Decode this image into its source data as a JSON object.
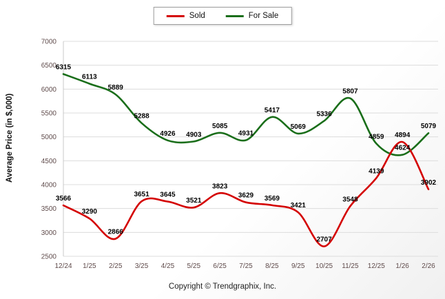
{
  "footer": {
    "copyright": "Copyright © Trendgraphix, Inc."
  },
  "styles": {
    "grid_color": "#dcdcdc",
    "axis_line_color": "#c8c8c8",
    "tick_label_color": "#5f4b4b",
    "data_label_color": "#000000",
    "legend_border_color": "#9e9e9e"
  },
  "chart_data": {
    "type": "line",
    "title": "",
    "xlabel": "",
    "ylabel": "Average Price (in $,000)",
    "ylim": [
      2500,
      7000
    ],
    "ytick_step": 500,
    "grid": true,
    "legend_position": "top",
    "categories": [
      "12/24",
      "1/25",
      "2/25",
      "3/25",
      "4/25",
      "5/25",
      "6/25",
      "7/25",
      "8/25",
      "9/25",
      "10/25",
      "11/25",
      "12/25",
      "1/26",
      "2/26"
    ],
    "series": [
      {
        "name": "Sold",
        "color": "#d40000",
        "values": [
          3566,
          3290,
          2866,
          3651,
          3645,
          3521,
          3823,
          3629,
          3569,
          3421,
          2707,
          3548,
          4139,
          4894,
          3902
        ]
      },
      {
        "name": "For Sale",
        "color": "#1a6e1a",
        "values": [
          6315,
          6113,
          5889,
          5288,
          4926,
          4903,
          5085,
          4931,
          5417,
          5069,
          5336,
          5807,
          4859,
          4624,
          5079
        ]
      }
    ]
  }
}
